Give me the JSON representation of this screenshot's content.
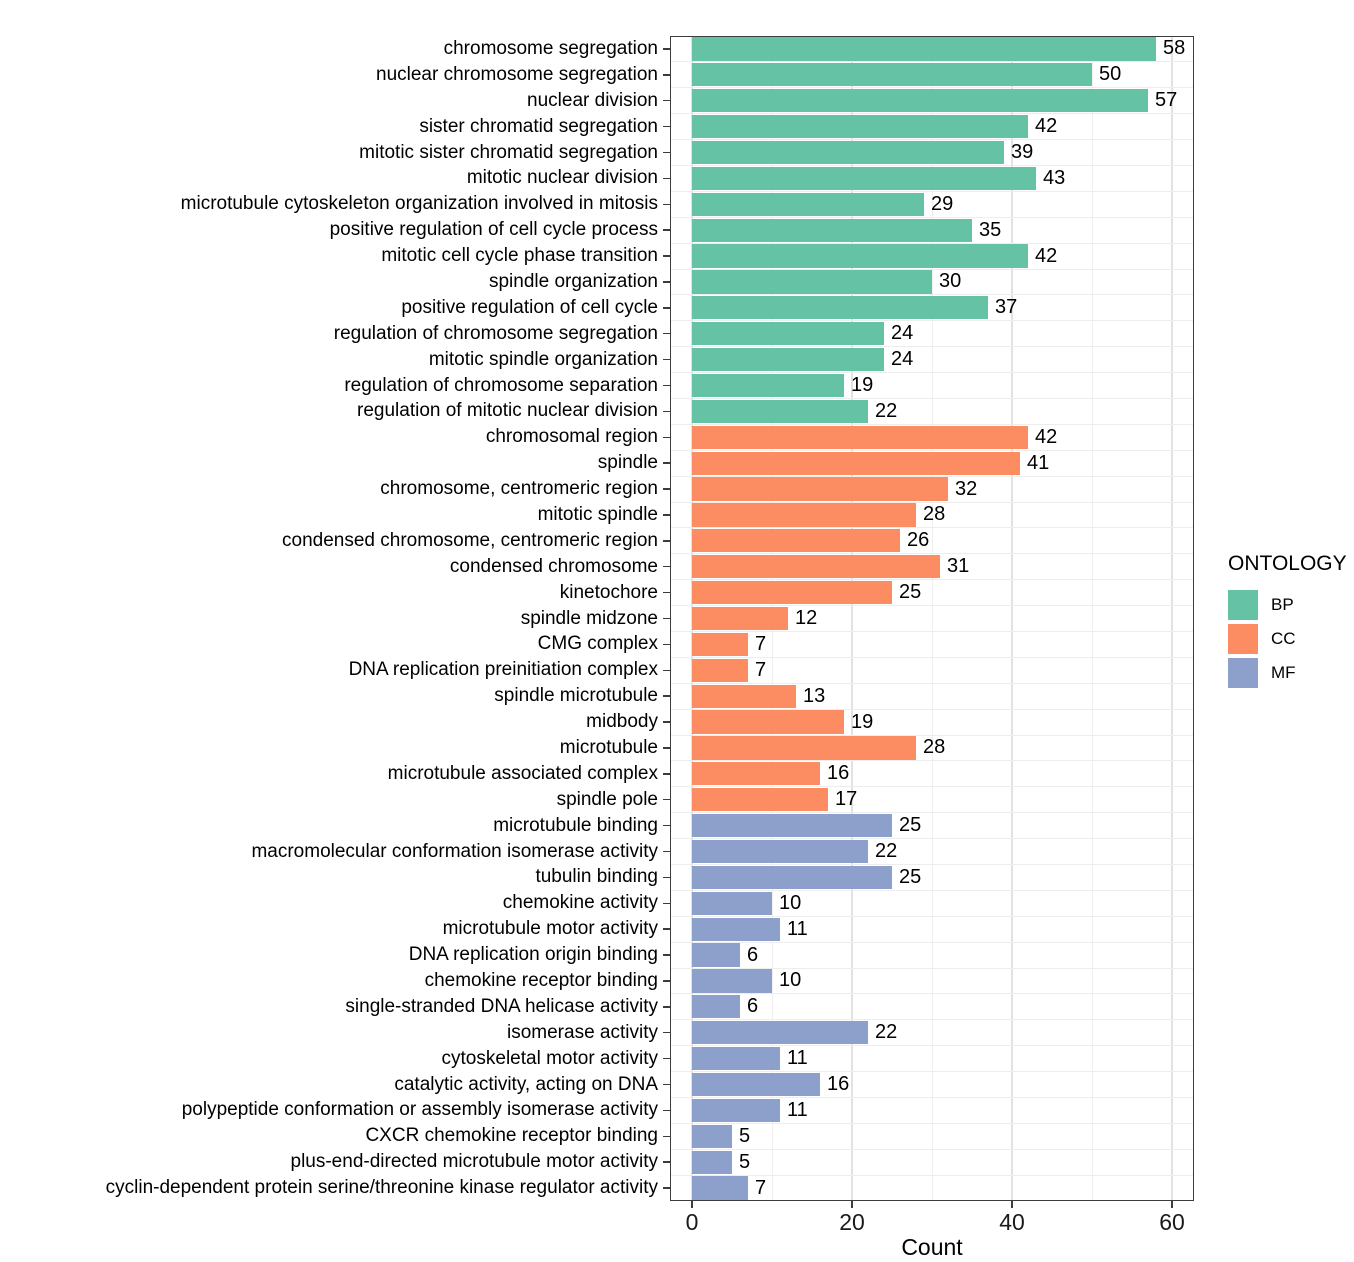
{
  "chart_data": {
    "type": "bar",
    "orientation": "horizontal",
    "title": "",
    "xlabel": "Count",
    "ylabel": "",
    "x_ticks": [
      0,
      20,
      40,
      60
    ],
    "x_minor_ticks": [
      10,
      30,
      50
    ],
    "xlim": [
      -2.75,
      62.75
    ],
    "grid": true,
    "value_labels_shown": true,
    "legend": {
      "title": "ONTOLOGY",
      "position": "right",
      "entries": [
        {
          "label": "BP",
          "color": "#66C2A5"
        },
        {
          "label": "CC",
          "color": "#FC8D62"
        },
        {
          "label": "MF",
          "color": "#8DA0CB"
        }
      ]
    },
    "bars": [
      {
        "category": "chromosome segregation",
        "value": 58,
        "group": "BP"
      },
      {
        "category": "nuclear chromosome segregation",
        "value": 50,
        "group": "BP"
      },
      {
        "category": "nuclear division",
        "value": 57,
        "group": "BP"
      },
      {
        "category": "sister chromatid segregation",
        "value": 42,
        "group": "BP"
      },
      {
        "category": "mitotic sister chromatid segregation",
        "value": 39,
        "group": "BP"
      },
      {
        "category": "mitotic nuclear division",
        "value": 43,
        "group": "BP"
      },
      {
        "category": "microtubule cytoskeleton organization involved in mitosis",
        "value": 29,
        "group": "BP"
      },
      {
        "category": "positive regulation of cell cycle process",
        "value": 35,
        "group": "BP"
      },
      {
        "category": "mitotic cell cycle phase transition",
        "value": 42,
        "group": "BP"
      },
      {
        "category": "spindle organization",
        "value": 30,
        "group": "BP"
      },
      {
        "category": "positive regulation of cell cycle",
        "value": 37,
        "group": "BP"
      },
      {
        "category": "regulation of chromosome segregation",
        "value": 24,
        "group": "BP"
      },
      {
        "category": "mitotic spindle organization",
        "value": 24,
        "group": "BP"
      },
      {
        "category": "regulation of chromosome separation",
        "value": 19,
        "group": "BP"
      },
      {
        "category": "regulation of mitotic nuclear division",
        "value": 22,
        "group": "BP"
      },
      {
        "category": "chromosomal region",
        "value": 42,
        "group": "CC"
      },
      {
        "category": "spindle",
        "value": 41,
        "group": "CC"
      },
      {
        "category": "chromosome, centromeric region",
        "value": 32,
        "group": "CC"
      },
      {
        "category": "mitotic spindle",
        "value": 28,
        "group": "CC"
      },
      {
        "category": "condensed chromosome, centromeric region",
        "value": 26,
        "group": "CC"
      },
      {
        "category": "condensed chromosome",
        "value": 31,
        "group": "CC"
      },
      {
        "category": "kinetochore",
        "value": 25,
        "group": "CC"
      },
      {
        "category": "spindle midzone",
        "value": 12,
        "group": "CC"
      },
      {
        "category": "CMG complex",
        "value": 7,
        "group": "CC"
      },
      {
        "category": "DNA replication preinitiation complex",
        "value": 7,
        "group": "CC"
      },
      {
        "category": "spindle microtubule",
        "value": 13,
        "group": "CC"
      },
      {
        "category": "midbody",
        "value": 19,
        "group": "CC"
      },
      {
        "category": "microtubule",
        "value": 28,
        "group": "CC"
      },
      {
        "category": "microtubule associated complex",
        "value": 16,
        "group": "CC"
      },
      {
        "category": "spindle pole",
        "value": 17,
        "group": "CC"
      },
      {
        "category": "microtubule binding",
        "value": 25,
        "group": "MF"
      },
      {
        "category": "macromolecular conformation isomerase activity",
        "value": 22,
        "group": "MF"
      },
      {
        "category": "tubulin binding",
        "value": 25,
        "group": "MF"
      },
      {
        "category": "chemokine activity",
        "value": 10,
        "group": "MF"
      },
      {
        "category": "microtubule motor activity",
        "value": 11,
        "group": "MF"
      },
      {
        "category": "DNA replication origin binding",
        "value": 6,
        "group": "MF"
      },
      {
        "category": "chemokine receptor binding",
        "value": 10,
        "group": "MF"
      },
      {
        "category": "single-stranded DNA helicase activity",
        "value": 6,
        "group": "MF"
      },
      {
        "category": "isomerase activity",
        "value": 22,
        "group": "MF"
      },
      {
        "category": "cytoskeletal motor activity",
        "value": 11,
        "group": "MF"
      },
      {
        "category": "catalytic activity, acting on DNA",
        "value": 16,
        "group": "MF"
      },
      {
        "category": "polypeptide conformation or assembly isomerase activity",
        "value": 11,
        "group": "MF"
      },
      {
        "category": "CXCR chemokine receptor binding",
        "value": 5,
        "group": "MF"
      },
      {
        "category": "plus-end-directed microtubule motor activity",
        "value": 5,
        "group": "MF"
      },
      {
        "category": "cyclin-dependent protein serine/threonine kinase regulator activity",
        "value": 7,
        "group": "MF"
      }
    ]
  }
}
